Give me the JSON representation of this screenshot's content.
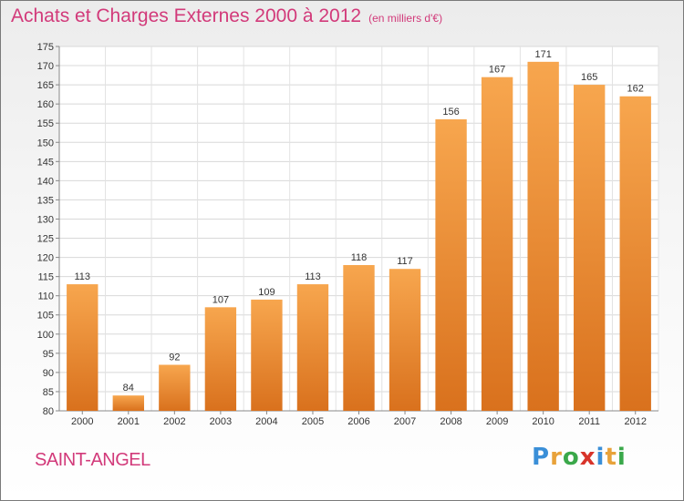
{
  "header": {
    "title": "Achats et Charges Externes 2000 à 2012",
    "subtitle": "(en milliers d'€)"
  },
  "footer": {
    "commune": "SAINT-ANGEL",
    "logo_letters": [
      "P",
      "r",
      "o",
      "x",
      "i",
      "t",
      "i"
    ],
    "logo_colors": [
      "#3a8fd8",
      "#e8a23a",
      "#3aa84a",
      "#d8342a",
      "#3a8fd8",
      "#e8a23a",
      "#3aa84a"
    ]
  },
  "chart_data": {
    "type": "bar",
    "categories": [
      "2000",
      "2001",
      "2002",
      "2003",
      "2004",
      "2005",
      "2006",
      "2007",
      "2008",
      "2009",
      "2010",
      "2011",
      "2012"
    ],
    "values": [
      113,
      84,
      92,
      107,
      109,
      113,
      118,
      117,
      156,
      167,
      171,
      165,
      162
    ],
    "ylim": [
      80,
      175
    ],
    "ytick_step": 5,
    "grid": true,
    "bar_color_top": "#f7a64e",
    "bar_color_bottom": "#d9711d"
  }
}
